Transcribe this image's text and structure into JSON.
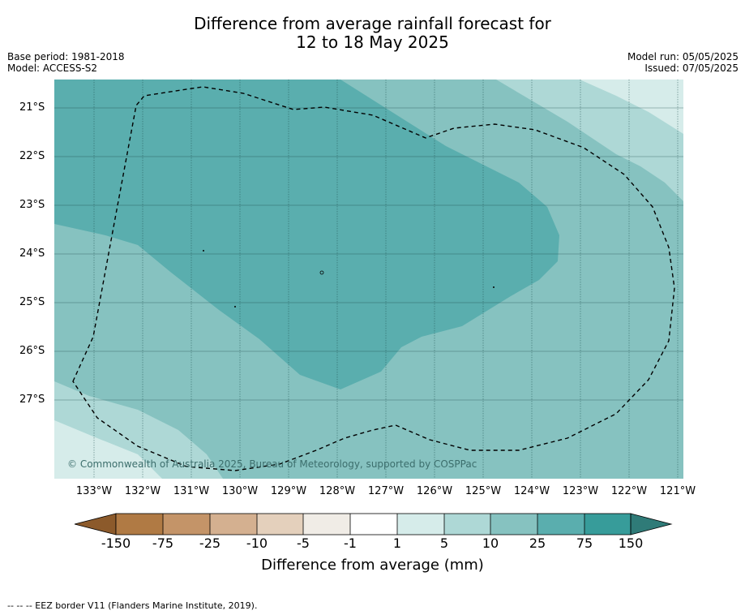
{
  "title_line1": "Difference from average rainfall forecast for",
  "title_line2": "12 to 18 May 2025",
  "base_period": "Base period: 1981-2018",
  "model": "Model: ACCESS-S2",
  "model_run": "Model run: 05/05/2025",
  "issued": "Issued: 07/05/2025",
  "copyright": "© Commonwealth of Australia 2025, Bureau of Meteorology, supported by COSPPac",
  "lat_labels": [
    "21°S",
    "22°S",
    "23°S",
    "24°S",
    "25°S",
    "26°S",
    "27°S"
  ],
  "lon_labels": [
    "133°W",
    "132°W",
    "131°W",
    "130°W",
    "129°W",
    "128°W",
    "127°W",
    "126°W",
    "125°W",
    "124°W",
    "123°W",
    "122°W",
    "121°W"
  ],
  "colorbar": {
    "title": "Difference from average (mm)",
    "ticks": [
      "-150",
      "-75",
      "-25",
      "-10",
      "-5",
      "-1",
      "1",
      "5",
      "10",
      "25",
      "75",
      "150"
    ],
    "colors": {
      "below_min": "#8c5a2b",
      "c1": "#b07a44",
      "c2": "#c49468",
      "c3": "#d4b090",
      "c4": "#e4d0bc",
      "c5": "#f0ece6",
      "c6": "#ffffff",
      "c7": "#d6ecea",
      "c8": "#aed8d6",
      "c9": "#86c2c0",
      "c10": "#5aaeae",
      "c11": "#379c9a",
      "above_max": "#2f7b78"
    }
  },
  "footer": "--  --  -- EEZ border V11 (Flanders Marine Institute, 2019)."
}
